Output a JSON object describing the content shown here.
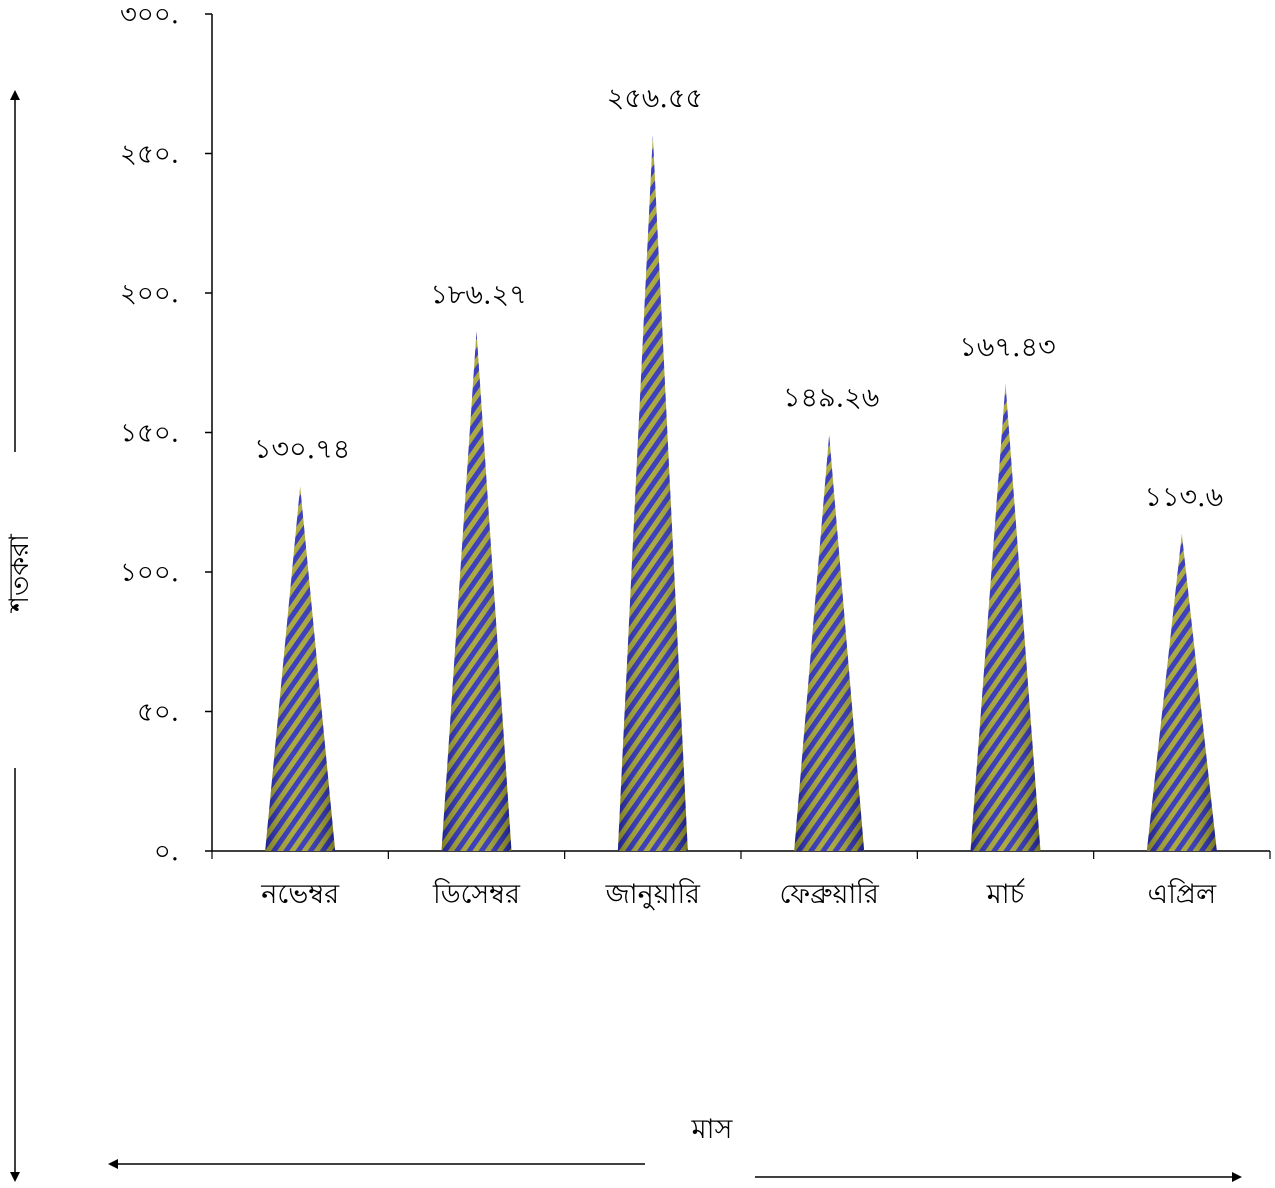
{
  "chart_data": {
    "type": "bar",
    "bar_shape": "cone",
    "categories": [
      "নভেম্বর",
      "ডিসেম্বর",
      "জানুয়ারি",
      "ফেব্রুয়ারি",
      "মার্চ",
      "এপ্রিল"
    ],
    "values": [
      130.74,
      186.27,
      256.55,
      149.26,
      167.43,
      113.6
    ],
    "value_labels": [
      "১৩০.৭৪",
      "১৮৬.২৭",
      "২৫৬.৫৫",
      "১৪৯.২৬",
      "১৬৭.৪৩",
      "১১৩.৬"
    ],
    "ylim": [
      0,
      300
    ],
    "y_ticks": [
      0,
      50,
      100,
      150,
      200,
      250,
      300
    ],
    "y_tick_labels": [
      "০.",
      "৫০.",
      "১০০.",
      "১৫০.",
      "২০০.",
      "২৫০.",
      "৩০০."
    ],
    "xlabel": "মাস",
    "ylabel": "শতকরা",
    "grid": false,
    "legend": "none",
    "colors": {
      "stripe_a": "#2b2fb8",
      "stripe_b": "#a5a32e",
      "axis": "#000000"
    }
  }
}
